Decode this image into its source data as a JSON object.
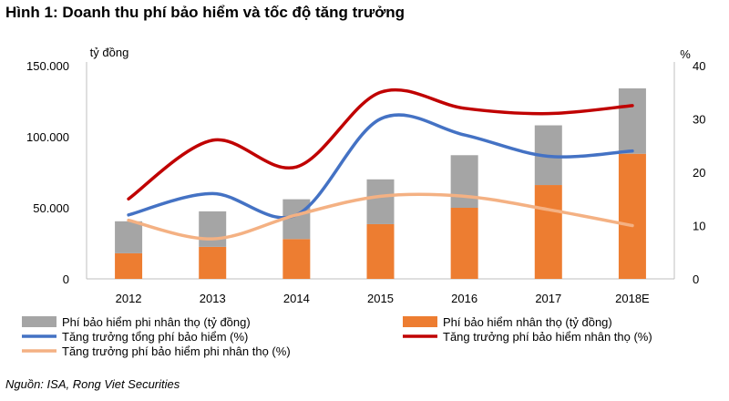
{
  "chart_data": {
    "type": "bar",
    "title": "Hình 1: Doanh thu phí bảo hiểm và tốc độ tăng trưởng",
    "categories": [
      "2012",
      "2013",
      "2014",
      "2015",
      "2016",
      "2017",
      "2018E"
    ],
    "y_left": {
      "label": "tỷ đồng",
      "ylim": [
        0,
        150000
      ],
      "ticks": [
        "0",
        "50.000",
        "100.000",
        "150.000"
      ]
    },
    "y_right": {
      "label": "%",
      "ylim": [
        0,
        40
      ],
      "ticks": [
        "0",
        "10",
        "20",
        "30",
        "40"
      ]
    },
    "bars": [
      {
        "name": "Phí bảo hiểm nhân thọ (tỷ đồng)",
        "color": "#ED7D31",
        "values": [
          18000,
          22500,
          28000,
          38500,
          50000,
          66000,
          88000
        ]
      },
      {
        "name": "Phí bảo hiểm phi nhân thọ (tỷ đồng)",
        "color": "#A5A5A5",
        "values": [
          22500,
          25000,
          28000,
          31500,
          37000,
          42000,
          46000
        ]
      }
    ],
    "lines": [
      {
        "name": "Tăng trưởng tổng phí bảo hiểm (%)",
        "color": "#4472C4",
        "values": [
          12,
          16,
          12,
          30,
          27,
          23,
          24
        ]
      },
      {
        "name": "Tăng trưởng phí bảo hiểm nhân thọ (%)",
        "color": "#C00000",
        "values": [
          15,
          26,
          21,
          35,
          32,
          31,
          32.5
        ]
      },
      {
        "name": "Tăng trưởng phí bảo hiểm phi nhân thọ (%)",
        "color": "#F4B183",
        "values": [
          11,
          7.5,
          12,
          15.5,
          15.5,
          13,
          10
        ]
      }
    ],
    "legend_placement": "bottom",
    "legend_order": [
      "Phí bảo hiểm phi nhân thọ (tỷ đồng)",
      "Phí bảo hiểm nhân thọ (tỷ đồng)",
      "Tăng trưởng tổng phí bảo hiểm (%)",
      "Tăng trưởng phí bảo hiểm nhân thọ (%)",
      "Tăng trưởng phí bảo hiểm phi nhân thọ (%)"
    ],
    "grid": false,
    "source": "Nguồn: ISA, Rong Viet Securities"
  }
}
